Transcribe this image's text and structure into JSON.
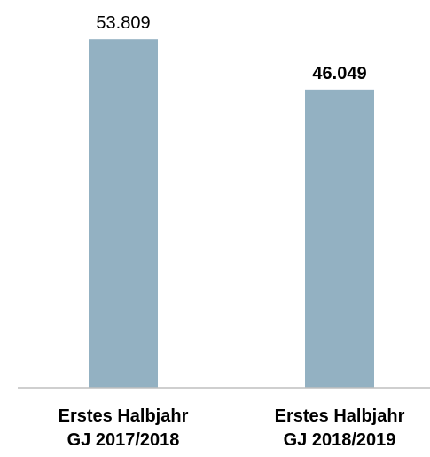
{
  "chart_data": {
    "type": "bar",
    "categories": [
      "Erstes Halbjahr\nGJ 2017/2018",
      "Erstes Halbjahr\nGJ 2018/2019"
    ],
    "values": [
      53809,
      46049
    ],
    "value_labels": [
      "53.809",
      "46.049"
    ],
    "value_label_weights": [
      "normal",
      "bold"
    ],
    "color": "#93b1c2",
    "ylim": [
      0,
      60000
    ]
  }
}
